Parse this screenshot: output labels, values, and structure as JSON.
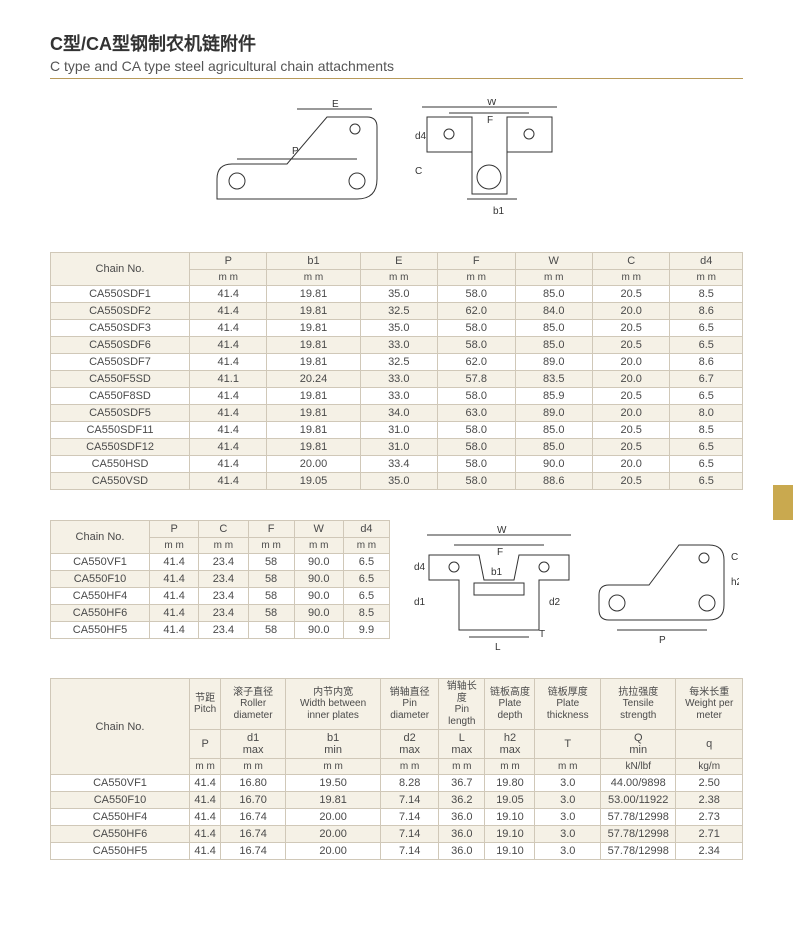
{
  "title_cn": "C型/CA型钢制农机链附件",
  "title_en": "C type and CA type steel agricultural chain attachments",
  "table1": {
    "chain_no_label": "Chain No.",
    "columns": [
      "P",
      "b1",
      "E",
      "F",
      "W",
      "C",
      "d4"
    ],
    "unit": "m m",
    "rows": [
      [
        "CA550SDF1",
        "41.4",
        "19.81",
        "35.0",
        "58.0",
        "85.0",
        "20.5",
        "8.5"
      ],
      [
        "CA550SDF2",
        "41.4",
        "19.81",
        "32.5",
        "62.0",
        "84.0",
        "20.0",
        "8.6"
      ],
      [
        "CA550SDF3",
        "41.4",
        "19.81",
        "35.0",
        "58.0",
        "85.0",
        "20.5",
        "6.5"
      ],
      [
        "CA550SDF6",
        "41.4",
        "19.81",
        "33.0",
        "58.0",
        "85.0",
        "20.5",
        "6.5"
      ],
      [
        "CA550SDF7",
        "41.4",
        "19.81",
        "32.5",
        "62.0",
        "89.0",
        "20.0",
        "8.6"
      ],
      [
        "CA550F5SD",
        "41.1",
        "20.24",
        "33.0",
        "57.8",
        "83.5",
        "20.0",
        "6.7"
      ],
      [
        "CA550F8SD",
        "41.4",
        "19.81",
        "33.0",
        "58.0",
        "85.9",
        "20.5",
        "6.5"
      ],
      [
        "CA550SDF5",
        "41.4",
        "19.81",
        "34.0",
        "63.0",
        "89.0",
        "20.0",
        "8.0"
      ],
      [
        "CA550SDF11",
        "41.4",
        "19.81",
        "31.0",
        "58.0",
        "85.0",
        "20.5",
        "8.5"
      ],
      [
        "CA550SDF12",
        "41.4",
        "19.81",
        "31.0",
        "58.0",
        "85.0",
        "20.5",
        "6.5"
      ],
      [
        "CA550HSD",
        "41.4",
        "20.00",
        "33.4",
        "58.0",
        "90.0",
        "20.0",
        "6.5"
      ],
      [
        "CA550VSD",
        "41.4",
        "19.05",
        "35.0",
        "58.0",
        "88.6",
        "20.5",
        "6.5"
      ]
    ]
  },
  "table2": {
    "chain_no_label": "Chain No.",
    "columns": [
      "P",
      "C",
      "F",
      "W",
      "d4"
    ],
    "unit": "m m",
    "rows": [
      [
        "CA550VF1",
        "41.4",
        "23.4",
        "58",
        "90.0",
        "6.5"
      ],
      [
        "CA550F10",
        "41.4",
        "23.4",
        "58",
        "90.0",
        "6.5"
      ],
      [
        "CA550HF4",
        "41.4",
        "23.4",
        "58",
        "90.0",
        "6.5"
      ],
      [
        "CA550HF6",
        "41.4",
        "23.4",
        "58",
        "90.0",
        "8.5"
      ],
      [
        "CA550HF5",
        "41.4",
        "23.4",
        "58",
        "90.0",
        "9.9"
      ]
    ]
  },
  "table3": {
    "chain_no_label": "Chain No.",
    "headers_top_cn": [
      "节距",
      "滚子直径",
      "内节内宽",
      "销轴直径",
      "销轴长度",
      "链板高度",
      "链板厚度",
      "抗拉强度",
      "每米长重"
    ],
    "headers_top_en": [
      "Pitch",
      "Roller diameter",
      "Width between inner plates",
      "Pin diameter",
      "Pin length",
      "Plate depth",
      "Plate thickness",
      "Tensile strength",
      "Weight per meter"
    ],
    "headers_sym": [
      "P",
      "d1\nmax",
      "b1\nmin",
      "d2\nmax",
      "L\nmax",
      "h2\nmax",
      "T",
      "Q\nmin",
      "q"
    ],
    "units": [
      "m m",
      "m m",
      "m m",
      "m m",
      "m m",
      "m m",
      "m m",
      "kN/lbf",
      "kg/m"
    ],
    "rows": [
      [
        "CA550VF1",
        "41.4",
        "16.80",
        "19.50",
        "8.28",
        "36.7",
        "19.80",
        "3.0",
        "44.00/9898",
        "2.50"
      ],
      [
        "CA550F10",
        "41.4",
        "16.70",
        "19.81",
        "7.14",
        "36.2",
        "19.05",
        "3.0",
        "53.00/11922",
        "2.38"
      ],
      [
        "CA550HF4",
        "41.4",
        "16.74",
        "20.00",
        "7.14",
        "36.0",
        "19.10",
        "3.0",
        "57.78/12998",
        "2.73"
      ],
      [
        "CA550HF6",
        "41.4",
        "16.74",
        "20.00",
        "7.14",
        "36.0",
        "19.10",
        "3.0",
        "57.78/12998",
        "2.71"
      ],
      [
        "CA550HF5",
        "41.4",
        "16.74",
        "20.00",
        "7.14",
        "36.0",
        "19.10",
        "3.0",
        "57.78/12998",
        "2.34"
      ]
    ]
  },
  "colors": {
    "rule": "#b89a5a",
    "header_bg": "#f5f1e6",
    "border": "#d0c8b8",
    "tab": "#c9a94f"
  }
}
